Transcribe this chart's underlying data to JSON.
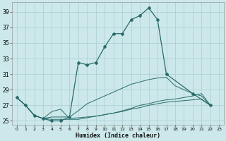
{
  "xlabel": "Humidex (Indice chaleur)",
  "bg_color": "#cce8ea",
  "line_color": "#2a6b6b",
  "grid_color": "#aacdd0",
  "xlim": [
    -0.5,
    23.5
  ],
  "ylim": [
    24.5,
    40.2
  ],
  "yticks": [
    25,
    27,
    29,
    31,
    33,
    35,
    37,
    39
  ],
  "xticks": [
    0,
    1,
    2,
    3,
    4,
    5,
    6,
    7,
    8,
    9,
    10,
    11,
    12,
    13,
    14,
    15,
    16,
    17,
    18,
    19,
    20,
    21,
    22,
    23
  ],
  "main_x": [
    0,
    1,
    2,
    3,
    4,
    5,
    6,
    7,
    8,
    9,
    10,
    11,
    12,
    13,
    14,
    15,
    16,
    17,
    20,
    22
  ],
  "main_y": [
    28.0,
    27.0,
    25.7,
    25.3,
    25.0,
    25.0,
    25.5,
    32.5,
    32.2,
    32.5,
    34.5,
    36.2,
    36.2,
    38.0,
    38.5,
    39.5,
    38.0,
    31.0,
    28.5,
    27.0
  ],
  "line2_x": [
    0,
    1,
    2,
    3,
    4,
    5,
    6,
    7,
    8,
    9,
    10,
    11,
    12,
    13,
    14,
    15,
    16,
    17,
    18,
    19,
    20,
    21,
    22
  ],
  "line2_y": [
    28.0,
    27.0,
    25.7,
    25.3,
    25.2,
    25.2,
    25.2,
    25.2,
    25.4,
    25.6,
    25.8,
    26.0,
    26.3,
    26.6,
    27.0,
    27.2,
    27.5,
    27.7,
    27.8,
    28.0,
    28.2,
    28.5,
    27.0
  ],
  "line3_x": [
    0,
    1,
    2,
    3,
    4,
    5,
    6,
    7,
    8,
    9,
    10,
    11,
    12,
    13,
    14,
    15,
    16,
    17,
    18,
    19,
    20,
    21,
    22
  ],
  "line3_y": [
    28.0,
    27.0,
    25.7,
    25.3,
    25.5,
    25.5,
    25.5,
    26.3,
    27.2,
    27.7,
    28.2,
    28.7,
    29.2,
    29.7,
    30.0,
    30.3,
    30.5,
    30.6,
    29.5,
    29.0,
    28.5,
    28.2,
    27.0
  ],
  "line4_x": [
    0,
    1,
    2,
    3,
    4,
    5,
    6,
    7,
    8,
    9,
    10,
    11,
    12,
    13,
    14,
    15,
    16,
    17,
    18,
    19,
    20,
    21,
    22
  ],
  "line4_y": [
    28.0,
    27.0,
    25.7,
    25.3,
    26.2,
    26.5,
    25.3,
    25.4,
    25.5,
    25.6,
    25.8,
    26.0,
    26.2,
    26.5,
    26.7,
    27.0,
    27.2,
    27.4,
    27.5,
    27.6,
    27.7,
    27.8,
    27.0
  ]
}
